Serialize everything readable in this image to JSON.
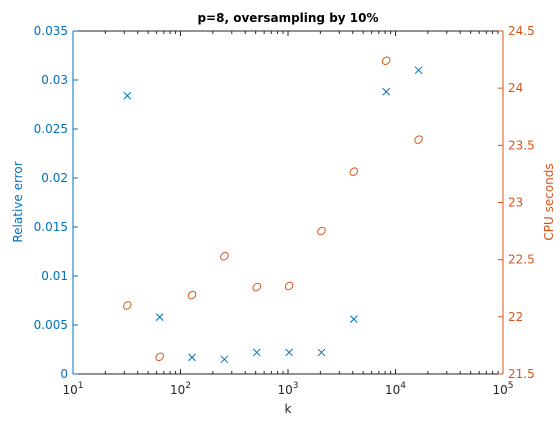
{
  "chart_data": {
    "type": "scatter",
    "title": "p=8, oversampling by 10%",
    "xlabel": "k",
    "x_scale": "log",
    "xlim": [
      10,
      100000
    ],
    "x_ticks": [
      {
        "value": 10,
        "base": "10",
        "exp": "1"
      },
      {
        "value": 100,
        "base": "10",
        "exp": "2"
      },
      {
        "value": 1000,
        "base": "10",
        "exp": "3"
      },
      {
        "value": 10000,
        "base": "10",
        "exp": "4"
      },
      {
        "value": 100000,
        "base": "10",
        "exp": "5"
      }
    ],
    "y_left": {
      "label": "Relative error",
      "lim": [
        0,
        0.035
      ],
      "ticks": [
        "0",
        "0.005",
        "0.01",
        "0.015",
        "0.02",
        "0.025",
        "0.03",
        "0.035"
      ],
      "color": "#0072bd"
    },
    "y_right": {
      "label": "CPU seconds",
      "lim": [
        21.5,
        24.5
      ],
      "ticks": [
        "21.5",
        "22",
        "22.5",
        "23",
        "23.5",
        "24",
        "24.5"
      ],
      "color": "#d95319"
    },
    "grid": false,
    "series": [
      {
        "axis": "left",
        "marker": "x",
        "color": "#0072bd",
        "x": [
          32,
          64,
          128,
          256,
          512,
          1024,
          2048,
          4096,
          8192,
          16384
        ],
        "y": [
          0.0284,
          0.0058,
          0.0017,
          0.0015,
          0.0022,
          0.0022,
          0.0022,
          0.0056,
          0.0288,
          0.031
        ]
      },
      {
        "axis": "right",
        "marker": "o",
        "color": "#d95319",
        "x": [
          32,
          64,
          128,
          256,
          512,
          1024,
          2048,
          4096,
          8192,
          16384
        ],
        "y": [
          22.1,
          21.65,
          22.19,
          22.53,
          22.26,
          22.27,
          22.75,
          23.27,
          24.24,
          23.55
        ]
      }
    ]
  }
}
